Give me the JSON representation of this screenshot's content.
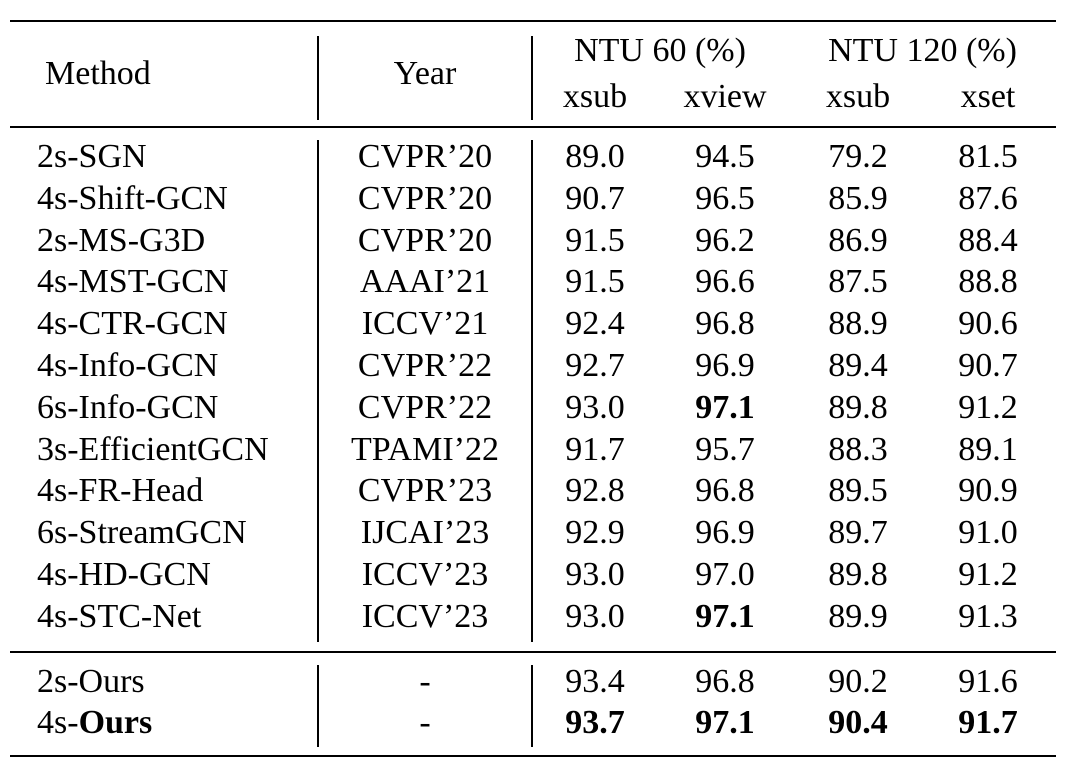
{
  "table": {
    "header": {
      "method": "Method",
      "year": "Year",
      "group1": "NTU 60 (%)",
      "group2": "NTU 120 (%)",
      "sub_xsub": "xsub",
      "sub_xview": "xview",
      "sub_xsub2": "xsub",
      "sub_xset": "xset"
    },
    "rows": [
      {
        "method": "2s-SGN",
        "year": "CVPR’20",
        "v": [
          "89.0",
          "94.5",
          "79.2",
          "81.5"
        ]
      },
      {
        "method": "4s-Shift-GCN",
        "year": "CVPR’20",
        "v": [
          "90.7",
          "96.5",
          "85.9",
          "87.6"
        ]
      },
      {
        "method": "2s-MS-G3D",
        "year": "CVPR’20",
        "v": [
          "91.5",
          "96.2",
          "86.9",
          "88.4"
        ]
      },
      {
        "method": "4s-MST-GCN",
        "year": "AAAI’21",
        "v": [
          "91.5",
          "96.6",
          "87.5",
          "88.8"
        ]
      },
      {
        "method": "4s-CTR-GCN",
        "year": "ICCV’21",
        "v": [
          "92.4",
          "96.8",
          "88.9",
          "90.6"
        ]
      },
      {
        "method": "4s-Info-GCN",
        "year": "CVPR’22",
        "v": [
          "92.7",
          "96.9",
          "89.4",
          "90.7"
        ]
      },
      {
        "method": "6s-Info-GCN",
        "year": "CVPR’22",
        "v": [
          "93.0",
          "97.1",
          "89.8",
          "91.2"
        ]
      },
      {
        "method": "3s-EfficientGCN",
        "year": "TPAMI’22",
        "v": [
          "91.7",
          "95.7",
          "88.3",
          "89.1"
        ]
      },
      {
        "method": "4s-FR-Head",
        "year": "CVPR’23",
        "v": [
          "92.8",
          "96.8",
          "89.5",
          "90.9"
        ]
      },
      {
        "method": "6s-StreamGCN",
        "year": "IJCAI’23",
        "v": [
          "92.9",
          "96.9",
          "89.7",
          "91.0"
        ]
      },
      {
        "method": "4s-HD-GCN",
        "year": "ICCV’23",
        "v": [
          "93.0",
          "97.0",
          "89.8",
          "91.2"
        ]
      },
      {
        "method": "4s-STC-Net",
        "year": "ICCV’23",
        "v": [
          "93.0",
          "97.1",
          "89.9",
          "91.3"
        ]
      }
    ],
    "ours": [
      {
        "prefix": "2s-Ours",
        "bold": "",
        "year": "-",
        "v": [
          "93.4",
          "96.8",
          "90.2",
          "91.6"
        ]
      },
      {
        "prefix": "4s-",
        "bold": "Ours",
        "year": "-",
        "v": [
          "93.7",
          "97.1",
          "90.4",
          "91.7"
        ]
      }
    ]
  }
}
